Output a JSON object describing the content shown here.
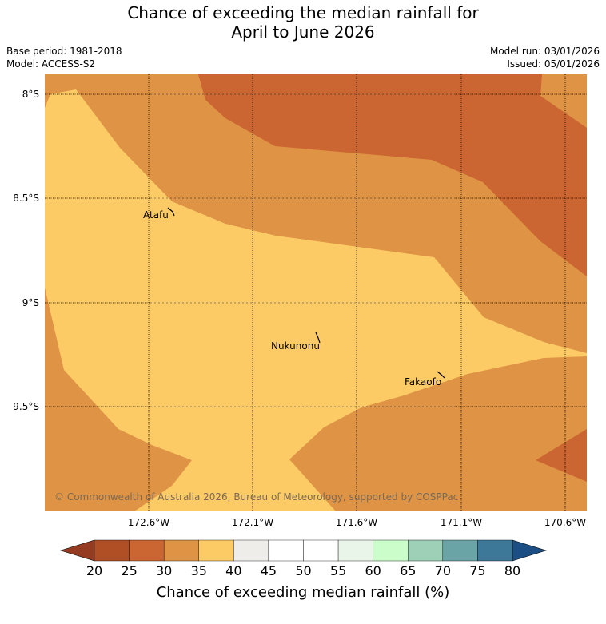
{
  "title": {
    "line1": "Chance of exceeding the median rainfall for",
    "line2": "April to June 2026"
  },
  "meta": {
    "base_period": "Base period: 1981-2018",
    "model": "Model: ACCESS-S2",
    "model_run": "Model run: 03/01/2026",
    "issued": "Issued: 05/01/2026"
  },
  "map": {
    "lat_labels": [
      "8°S",
      "8.5°S",
      "9°S",
      "9.5°S"
    ],
    "lon_labels": [
      "172.6°W",
      "172.1°W",
      "171.6°W",
      "171.1°W",
      "170.6°W"
    ],
    "places": [
      {
        "name": "Atafu"
      },
      {
        "name": "Nukunonu"
      },
      {
        "name": "Fakaofo"
      }
    ],
    "copyright": "© Commonwealth of Australia 2026, Bureau of Meteorology, supported by COSPPac"
  },
  "colorbar": {
    "ticks": [
      "20",
      "25",
      "30",
      "35",
      "40",
      "45",
      "50",
      "55",
      "60",
      "65",
      "70",
      "75",
      "80"
    ],
    "colors": [
      "#b04f26",
      "#cb6531",
      "#df9345",
      "#fdcb66",
      "#efedea",
      "#ffffff",
      "#ffffff",
      "#e9f5e8",
      "#cbfdcb",
      "#9dd0b6",
      "#6aa4a6",
      "#3e7898"
    ],
    "below_color": "#943b21",
    "above_color": "#1b4f84",
    "label": "Chance of exceeding median rainfall (%)"
  },
  "colors": {
    "range_20_25": "#b04f26",
    "range_25_30": "#cb6531",
    "range_30_35": "#df9345",
    "range_35_40": "#fdcb66"
  }
}
